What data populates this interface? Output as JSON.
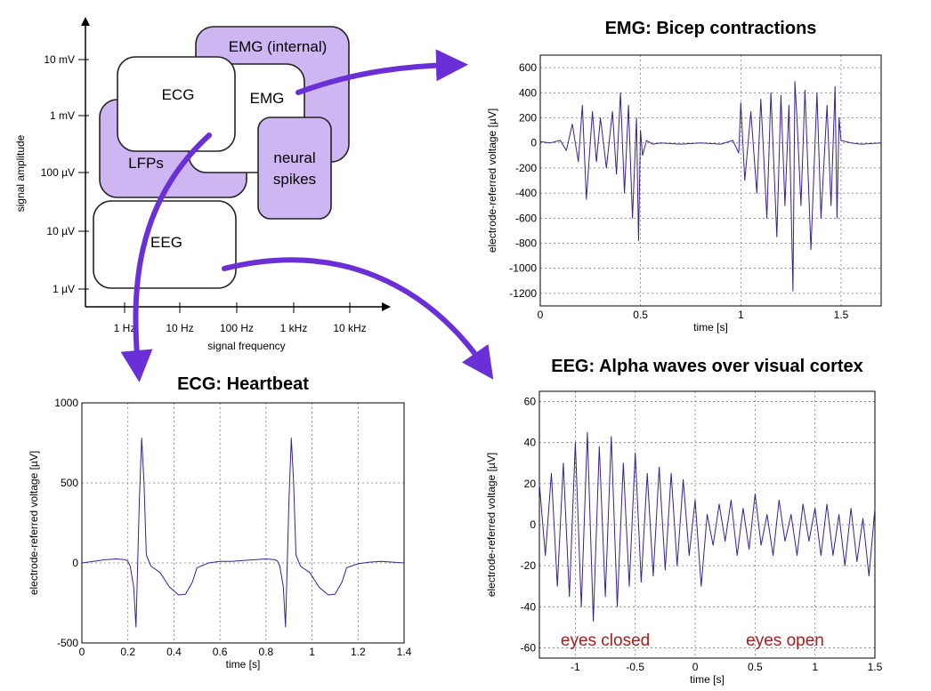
{
  "diagram": {
    "y_axis_label": "signal amplitude",
    "x_axis_label": "signal frequency",
    "y_ticks": [
      "10 mV",
      "1 mV",
      "100 µV",
      "10 µV",
      "1 µV"
    ],
    "x_ticks": [
      "1 Hz",
      "10 Hz",
      "100 Hz",
      "1 kHz",
      "10 kHz"
    ],
    "boxes": {
      "emg_internal": "EMG (internal)",
      "emg": "EMG",
      "ecg": "ECG",
      "lfps": "LFPs",
      "neural_spikes_line1": "neural",
      "neural_spikes_line2": "spikes",
      "eeg": "EEG"
    },
    "colors": {
      "purple_box": "#cdb6f2",
      "arrow": "#6a2fd6",
      "trace": "#3b1f8f",
      "annotation": "#a32020"
    }
  },
  "chart_data": [
    {
      "id": "emg",
      "type": "line",
      "title": "EMG: Bicep contractions",
      "xlabel": "time [s]",
      "ylabel": "electrode-referred voltage [µV]",
      "xlim": [
        0,
        1.7
      ],
      "ylim": [
        -1300,
        700
      ],
      "xticks": [
        0,
        0.5,
        1,
        1.5
      ],
      "yticks": [
        600,
        400,
        200,
        0,
        -200,
        -400,
        -600,
        -800,
        -1000,
        -1200
      ],
      "grid": true,
      "series": [
        {
          "x": [
            0,
            0.05,
            0.1,
            0.13,
            0.16,
            0.19,
            0.21,
            0.23,
            0.26,
            0.28,
            0.3,
            0.33,
            0.36,
            0.38,
            0.4,
            0.42,
            0.44,
            0.46,
            0.48,
            0.49,
            0.5,
            0.51,
            0.53,
            0.56,
            0.6,
            0.7,
            0.8,
            0.9,
            0.96,
            0.99,
            1.0,
            1.02,
            1.05,
            1.08,
            1.1,
            1.13,
            1.15,
            1.18,
            1.2,
            1.22,
            1.24,
            1.26,
            1.27,
            1.28,
            1.3,
            1.32,
            1.35,
            1.38,
            1.4,
            1.43,
            1.45,
            1.47,
            1.48,
            1.49,
            1.5,
            1.55,
            1.6,
            1.7
          ],
          "y": [
            10,
            0,
            20,
            -60,
            150,
            -150,
            300,
            -450,
            250,
            -150,
            200,
            -200,
            250,
            -250,
            400,
            -400,
            300,
            -600,
            200,
            -780,
            100,
            -100,
            20,
            -10,
            0,
            -10,
            0,
            -10,
            20,
            -80,
            320,
            -300,
            250,
            -400,
            350,
            -600,
            400,
            -750,
            380,
            -500,
            300,
            -1180,
            490,
            200,
            -500,
            420,
            -850,
            400,
            -600,
            300,
            -500,
            450,
            -600,
            200,
            20,
            0,
            -10,
            0
          ]
        }
      ]
    },
    {
      "id": "ecg",
      "type": "line",
      "title": "ECG: Heartbeat",
      "xlabel": "time [s]",
      "ylabel": "electrode-referred voltage [µV]",
      "xlim": [
        0,
        1.4
      ],
      "ylim": [
        -500,
        1000
      ],
      "xticks": [
        0,
        0.2,
        0.4,
        0.6,
        0.8,
        1,
        1.2,
        1.4
      ],
      "yticks": [
        1000,
        500,
        0,
        -500
      ],
      "grid": true,
      "series": [
        {
          "x": [
            0,
            0.05,
            0.1,
            0.15,
            0.19,
            0.2,
            0.21,
            0.225,
            0.235,
            0.25,
            0.26,
            0.27,
            0.28,
            0.3,
            0.34,
            0.38,
            0.42,
            0.45,
            0.48,
            0.5,
            0.55,
            0.6,
            0.65,
            0.7,
            0.75,
            0.8,
            0.84,
            0.85,
            0.86,
            0.875,
            0.885,
            0.9,
            0.91,
            0.92,
            0.93,
            0.95,
            0.99,
            1.03,
            1.07,
            1.1,
            1.13,
            1.15,
            1.2,
            1.25,
            1.3,
            1.35,
            1.4
          ],
          "y": [
            0,
            10,
            20,
            25,
            20,
            10,
            -20,
            -150,
            -400,
            400,
            780,
            500,
            50,
            -20,
            -60,
            -150,
            -200,
            -195,
            -120,
            -30,
            0,
            10,
            10,
            15,
            20,
            25,
            20,
            10,
            -20,
            -150,
            -400,
            400,
            780,
            500,
            50,
            -20,
            -60,
            -150,
            -200,
            -195,
            -120,
            -30,
            -5,
            5,
            10,
            5,
            0
          ]
        }
      ]
    },
    {
      "id": "eeg",
      "type": "line",
      "title": "EEG: Alpha waves over visual cortex",
      "xlabel": "time [s]",
      "ylabel": "electrode-referred voltage [µV]",
      "xlim": [
        -1.3,
        1.5
      ],
      "ylim": [
        -65,
        65
      ],
      "xticks": [
        -1,
        -0.5,
        0,
        0.5,
        1,
        1.5
      ],
      "yticks": [
        60,
        40,
        20,
        0,
        -20,
        -40,
        -60
      ],
      "grid": true,
      "annotations": [
        "eyes closed",
        "eyes open"
      ],
      "series": [
        {
          "x": [
            -1.3,
            -1.25,
            -1.2,
            -1.15,
            -1.1,
            -1.05,
            -1.0,
            -0.95,
            -0.9,
            -0.85,
            -0.8,
            -0.75,
            -0.7,
            -0.65,
            -0.6,
            -0.55,
            -0.5,
            -0.45,
            -0.4,
            -0.35,
            -0.3,
            -0.25,
            -0.2,
            -0.15,
            -0.1,
            -0.05,
            0.0,
            0.05,
            0.1,
            0.15,
            0.2,
            0.25,
            0.3,
            0.35,
            0.4,
            0.45,
            0.5,
            0.55,
            0.6,
            0.65,
            0.7,
            0.75,
            0.8,
            0.85,
            0.9,
            0.95,
            1.0,
            1.05,
            1.1,
            1.15,
            1.2,
            1.25,
            1.3,
            1.35,
            1.4,
            1.45,
            1.5
          ],
          "y": [
            20,
            -15,
            25,
            -30,
            30,
            -35,
            40,
            -40,
            45,
            -47,
            38,
            -35,
            43,
            -40,
            30,
            -30,
            35,
            -28,
            25,
            -25,
            28,
            -22,
            25,
            -20,
            22,
            -15,
            12,
            -30,
            5,
            -10,
            10,
            -8,
            12,
            -15,
            8,
            -12,
            15,
            -10,
            5,
            -15,
            12,
            -8,
            5,
            -15,
            10,
            -8,
            8,
            -15,
            10,
            -15,
            5,
            -20,
            8,
            -18,
            3,
            -25,
            8
          ]
        }
      ]
    }
  ]
}
